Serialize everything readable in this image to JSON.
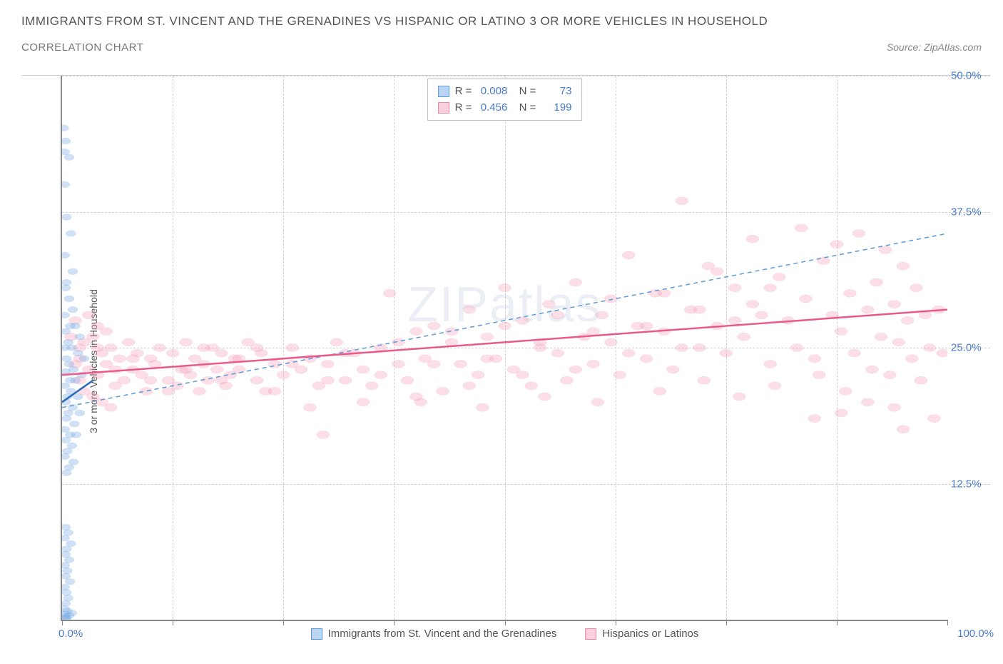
{
  "title": "IMMIGRANTS FROM ST. VINCENT AND THE GRENADINES VS HISPANIC OR LATINO 3 OR MORE VEHICLES IN HOUSEHOLD",
  "subtitle": "CORRELATION CHART",
  "source": "Source: ZipAtlas.com",
  "watermark": "ZIPatlas",
  "y_axis_label": "3 or more Vehicles in Household",
  "chart": {
    "type": "scatter",
    "xlim": [
      0,
      100
    ],
    "ylim": [
      0,
      50
    ],
    "x_ticks": [
      0,
      12.5,
      25,
      37.5,
      50,
      62.5,
      75,
      87.5,
      100
    ],
    "y_gridlines": [
      12.5,
      25,
      37.5,
      50
    ],
    "y_tick_labels": [
      "12.5%",
      "25.0%",
      "37.5%",
      "50.0%"
    ],
    "x_tick_label_left": "0.0%",
    "x_tick_label_right": "100.0%",
    "background_color": "#ffffff",
    "grid_color": "#d0d0d0",
    "axis_color": "#888888",
    "series": [
      {
        "name": "Immigrants from St. Vincent and the Grenadines",
        "color_fill": "rgba(120, 170, 230, 0.35)",
        "color_stroke": "#5a9bd8",
        "trend_color": "#2d6bb5",
        "marker_r": 7,
        "r_value": "0.008",
        "n_value": "73",
        "trend": {
          "x1": 0,
          "y1": 20.0,
          "x2": 3.5,
          "y2": 22.0
        },
        "dashed_trend": {
          "x1": 0,
          "y1": 19.5,
          "x2": 100,
          "y2": 35.5
        },
        "points": [
          [
            0.2,
            45.2
          ],
          [
            0.4,
            44.0
          ],
          [
            0.3,
            43.0
          ],
          [
            0.8,
            42.5
          ],
          [
            0.3,
            40.0
          ],
          [
            0.5,
            37.0
          ],
          [
            1.0,
            35.5
          ],
          [
            0.3,
            33.5
          ],
          [
            1.2,
            32.0
          ],
          [
            0.5,
            31.0
          ],
          [
            0.4,
            30.5
          ],
          [
            0.8,
            29.5
          ],
          [
            1.2,
            28.5
          ],
          [
            0.3,
            28.0
          ],
          [
            1.5,
            27.0
          ],
          [
            0.9,
            27.0
          ],
          [
            0.4,
            26.5
          ],
          [
            2.0,
            26.0
          ],
          [
            0.7,
            25.5
          ],
          [
            1.1,
            25.0
          ],
          [
            0.3,
            25.0
          ],
          [
            1.8,
            24.5
          ],
          [
            0.5,
            24.0
          ],
          [
            2.5,
            24.0
          ],
          [
            0.8,
            23.5
          ],
          [
            1.3,
            23.0
          ],
          [
            0.4,
            22.8
          ],
          [
            2.2,
            22.5
          ],
          [
            0.9,
            22.0
          ],
          [
            1.5,
            22.0
          ],
          [
            0.3,
            21.5
          ],
          [
            1.0,
            21.0
          ],
          [
            0.6,
            20.5
          ],
          [
            1.8,
            20.5
          ],
          [
            0.4,
            20.0
          ],
          [
            1.2,
            19.5
          ],
          [
            0.7,
            19.0
          ],
          [
            2.0,
            19.0
          ],
          [
            0.5,
            18.5
          ],
          [
            1.4,
            18.0
          ],
          [
            0.3,
            17.5
          ],
          [
            0.9,
            17.0
          ],
          [
            1.6,
            17.0
          ],
          [
            0.4,
            16.5
          ],
          [
            1.1,
            16.0
          ],
          [
            0.6,
            15.5
          ],
          [
            0.3,
            15.0
          ],
          [
            1.3,
            14.5
          ],
          [
            0.8,
            14.0
          ],
          [
            0.5,
            13.5
          ],
          [
            0.4,
            8.5
          ],
          [
            0.7,
            8.0
          ],
          [
            0.3,
            7.5
          ],
          [
            1.0,
            7.0
          ],
          [
            0.5,
            6.5
          ],
          [
            0.4,
            6.0
          ],
          [
            0.8,
            5.5
          ],
          [
            0.3,
            5.0
          ],
          [
            0.6,
            4.5
          ],
          [
            0.4,
            4.0
          ],
          [
            0.9,
            3.5
          ],
          [
            0.3,
            3.0
          ],
          [
            0.5,
            2.5
          ],
          [
            0.7,
            2.0
          ],
          [
            0.4,
            1.5
          ],
          [
            0.3,
            1.0
          ],
          [
            0.6,
            0.8
          ],
          [
            0.4,
            0.5
          ],
          [
            0.3,
            0.3
          ],
          [
            0.5,
            0.2
          ],
          [
            0.8,
            0.4
          ],
          [
            1.1,
            0.6
          ],
          [
            0.4,
            0.1
          ]
        ]
      },
      {
        "name": "Hispanics or Latinos",
        "color_fill": "rgba(245, 160, 185, 0.35)",
        "color_stroke": "#e88ba8",
        "trend_color": "#e85a8a",
        "marker_r": 9,
        "r_value": "0.456",
        "n_value": "199",
        "trend": {
          "x1": 0,
          "y1": 22.5,
          "x2": 100,
          "y2": 28.5
        },
        "points": [
          [
            1.5,
            27.5
          ],
          [
            2.0,
            24.0
          ],
          [
            2.5,
            25.5
          ],
          [
            3.0,
            23.0
          ],
          [
            3.5,
            26.0
          ],
          [
            4.0,
            22.5
          ],
          [
            4.5,
            24.5
          ],
          [
            5.0,
            23.5
          ],
          [
            5.5,
            25.0
          ],
          [
            6.0,
            21.5
          ],
          [
            6.5,
            24.0
          ],
          [
            7.0,
            22.0
          ],
          [
            7.5,
            25.5
          ],
          [
            8.0,
            23.0
          ],
          [
            8.5,
            24.5
          ],
          [
            9.0,
            22.5
          ],
          [
            9.5,
            21.0
          ],
          [
            10.0,
            24.0
          ],
          [
            10.5,
            23.5
          ],
          [
            11.0,
            25.0
          ],
          [
            12.0,
            22.0
          ],
          [
            12.5,
            24.5
          ],
          [
            13.0,
            21.5
          ],
          [
            13.5,
            23.0
          ],
          [
            14.0,
            25.5
          ],
          [
            14.5,
            22.5
          ],
          [
            15.0,
            24.0
          ],
          [
            15.5,
            21.0
          ],
          [
            16.0,
            23.5
          ],
          [
            16.5,
            22.0
          ],
          [
            17.0,
            25.0
          ],
          [
            17.5,
            23.0
          ],
          [
            18.0,
            24.5
          ],
          [
            18.5,
            21.5
          ],
          [
            19.0,
            22.5
          ],
          [
            19.5,
            24.0
          ],
          [
            20.0,
            23.0
          ],
          [
            21.0,
            25.5
          ],
          [
            22.0,
            22.0
          ],
          [
            22.5,
            24.5
          ],
          [
            23.0,
            21.0
          ],
          [
            24.0,
            23.5
          ],
          [
            25.0,
            22.5
          ],
          [
            26.0,
            25.0
          ],
          [
            27.0,
            23.0
          ],
          [
            28.0,
            24.0
          ],
          [
            29.0,
            21.5
          ],
          [
            30.0,
            23.5
          ],
          [
            29.5,
            17.0
          ],
          [
            31.0,
            25.5
          ],
          [
            32.0,
            22.0
          ],
          [
            33.0,
            24.5
          ],
          [
            34.0,
            23.0
          ],
          [
            35.0,
            21.5
          ],
          [
            36.0,
            25.0
          ],
          [
            37.0,
            30.0
          ],
          [
            38.0,
            23.5
          ],
          [
            39.0,
            22.0
          ],
          [
            40.0,
            26.5
          ],
          [
            40.5,
            20.0
          ],
          [
            41.0,
            24.0
          ],
          [
            42.0,
            27.0
          ],
          [
            43.0,
            21.0
          ],
          [
            44.0,
            25.5
          ],
          [
            45.0,
            23.5
          ],
          [
            46.0,
            28.5
          ],
          [
            47.0,
            22.5
          ],
          [
            47.5,
            19.5
          ],
          [
            48.0,
            26.0
          ],
          [
            49.0,
            24.0
          ],
          [
            50.0,
            30.5
          ],
          [
            51.0,
            23.0
          ],
          [
            52.0,
            27.5
          ],
          [
            53.0,
            21.5
          ],
          [
            54.0,
            25.0
          ],
          [
            54.5,
            20.5
          ],
          [
            55.0,
            29.0
          ],
          [
            56.0,
            24.5
          ],
          [
            57.0,
            22.0
          ],
          [
            58.0,
            31.0
          ],
          [
            59.0,
            26.0
          ],
          [
            60.0,
            23.5
          ],
          [
            60.5,
            20.0
          ],
          [
            61.0,
            28.0
          ],
          [
            62.0,
            25.5
          ],
          [
            63.0,
            22.5
          ],
          [
            64.0,
            33.5
          ],
          [
            65.0,
            27.0
          ],
          [
            66.0,
            24.0
          ],
          [
            67.0,
            30.0
          ],
          [
            67.5,
            21.0
          ],
          [
            68.0,
            26.5
          ],
          [
            69.0,
            23.0
          ],
          [
            70.0,
            38.5
          ],
          [
            71.0,
            28.5
          ],
          [
            72.0,
            25.0
          ],
          [
            72.5,
            22.0
          ],
          [
            73.0,
            32.5
          ],
          [
            74.0,
            27.0
          ],
          [
            75.0,
            24.5
          ],
          [
            76.0,
            30.5
          ],
          [
            76.5,
            20.5
          ],
          [
            77.0,
            26.0
          ],
          [
            78.0,
            35.0
          ],
          [
            79.0,
            28.0
          ],
          [
            80.0,
            23.5
          ],
          [
            80.5,
            21.5
          ],
          [
            81.0,
            31.5
          ],
          [
            82.0,
            27.5
          ],
          [
            83.0,
            25.0
          ],
          [
            83.5,
            36.0
          ],
          [
            84.0,
            29.5
          ],
          [
            85.0,
            24.0
          ],
          [
            85.5,
            22.5
          ],
          [
            86.0,
            33.0
          ],
          [
            87.0,
            28.0
          ],
          [
            87.5,
            34.5
          ],
          [
            88.0,
            26.5
          ],
          [
            88.5,
            21.0
          ],
          [
            89.0,
            30.0
          ],
          [
            89.5,
            24.5
          ],
          [
            90.0,
            35.5
          ],
          [
            91.0,
            28.5
          ],
          [
            91.5,
            23.0
          ],
          [
            92.0,
            31.0
          ],
          [
            92.5,
            26.0
          ],
          [
            93.0,
            34.0
          ],
          [
            93.5,
            22.5
          ],
          [
            94.0,
            29.0
          ],
          [
            94.5,
            25.5
          ],
          [
            95.0,
            32.5
          ],
          [
            95.5,
            27.5
          ],
          [
            96.0,
            24.0
          ],
          [
            96.5,
            30.5
          ],
          [
            97.0,
            22.0
          ],
          [
            97.5,
            28.0
          ],
          [
            98.0,
            25.0
          ],
          [
            98.5,
            18.5
          ],
          [
            99.0,
            28.5
          ],
          [
            99.5,
            24.5
          ],
          [
            95.0,
            17.5
          ],
          [
            94.0,
            19.5
          ],
          [
            91.0,
            20.0
          ],
          [
            88.0,
            19.0
          ],
          [
            85.0,
            18.5
          ],
          [
            80.0,
            30.5
          ],
          [
            78.0,
            29.0
          ],
          [
            76.0,
            27.5
          ],
          [
            74.0,
            32.0
          ],
          [
            72.0,
            28.5
          ],
          [
            70.0,
            25.0
          ],
          [
            68.0,
            30.0
          ],
          [
            66.0,
            27.0
          ],
          [
            64.0,
            24.5
          ],
          [
            62.0,
            29.5
          ],
          [
            60.0,
            26.5
          ],
          [
            58.0,
            23.0
          ],
          [
            56.0,
            28.0
          ],
          [
            54.0,
            25.5
          ],
          [
            52.0,
            22.5
          ],
          [
            50.0,
            27.0
          ],
          [
            48.0,
            24.0
          ],
          [
            46.0,
            21.5
          ],
          [
            44.0,
            26.5
          ],
          [
            42.0,
            23.5
          ],
          [
            40.0,
            20.5
          ],
          [
            38.0,
            25.5
          ],
          [
            36.0,
            22.5
          ],
          [
            34.0,
            20.0
          ],
          [
            32.0,
            24.5
          ],
          [
            30.0,
            22.0
          ],
          [
            28.0,
            19.5
          ],
          [
            26.0,
            23.5
          ],
          [
            24.0,
            21.0
          ],
          [
            22.0,
            25.0
          ],
          [
            20.0,
            24.0
          ],
          [
            18.0,
            22.0
          ],
          [
            16.0,
            25.0
          ],
          [
            14.0,
            23.0
          ],
          [
            12.0,
            21.0
          ],
          [
            10.0,
            22.0
          ],
          [
            8.0,
            24.0
          ],
          [
            6.0,
            23.0
          ],
          [
            4.0,
            25.0
          ],
          [
            2.0,
            22.0
          ],
          [
            3.0,
            28.0
          ],
          [
            4.0,
            27.0
          ],
          [
            5.0,
            26.5
          ],
          [
            2.5,
            21.0
          ],
          [
            3.5,
            20.5
          ],
          [
            4.5,
            20.0
          ],
          [
            5.5,
            19.5
          ],
          [
            1.0,
            26.0
          ],
          [
            1.5,
            23.5
          ],
          [
            2.0,
            25.0
          ]
        ]
      }
    ]
  },
  "legend_bottom": [
    {
      "label": "Immigrants from St. Vincent and the Grenadines",
      "fill": "rgba(120, 170, 230, 0.5)",
      "border": "#5a9bd8"
    },
    {
      "label": "Hispanics or Latinos",
      "fill": "rgba(245, 160, 185, 0.5)",
      "border": "#e88ba8"
    }
  ]
}
